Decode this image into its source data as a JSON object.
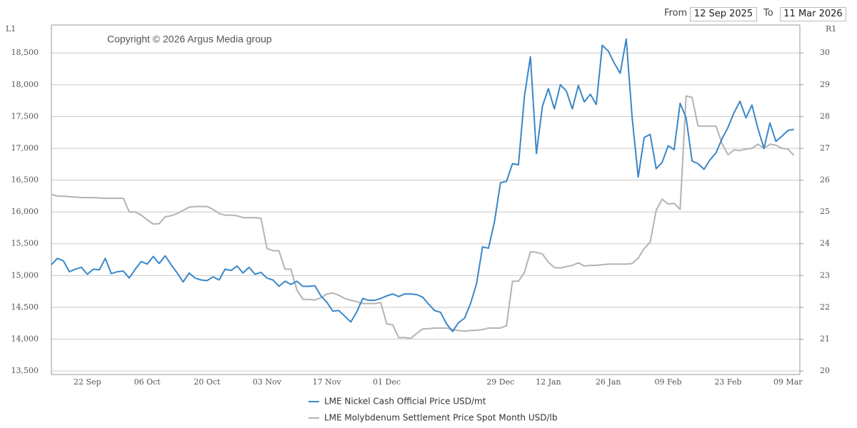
{
  "date_range": {
    "from_label": "From",
    "from": "12 Sep 2025",
    "to_label": "To",
    "to": "11 Mar 2026"
  },
  "chart_data": {
    "type": "line",
    "annotation": "Copyright © 2026 Argus Media group",
    "y_axis_label": "L1",
    "y2_axis_label": "R1",
    "categories": [
      null,
      null,
      null,
      null,
      null,
      null,
      "22 Sep",
      null,
      null,
      null,
      null,
      null,
      null,
      null,
      null,
      null,
      "06 Oct",
      null,
      null,
      null,
      null,
      null,
      null,
      null,
      null,
      null,
      "20 Oct",
      null,
      null,
      null,
      null,
      null,
      null,
      null,
      null,
      null,
      "03 Nov",
      null,
      null,
      null,
      null,
      null,
      null,
      null,
      null,
      null,
      "17 Nov",
      null,
      null,
      null,
      null,
      null,
      null,
      null,
      null,
      null,
      "01 Dec",
      null,
      null,
      null,
      null,
      null,
      null,
      null,
      null,
      null,
      null,
      null,
      null,
      null,
      null,
      null,
      null,
      null,
      null,
      "29 Dec",
      null,
      null,
      null,
      null,
      null,
      null,
      null,
      "12 Jan",
      null,
      null,
      null,
      null,
      null,
      null,
      null,
      null,
      null,
      "26 Jan",
      null,
      null,
      null,
      null,
      null,
      null,
      null,
      null,
      null,
      "09 Feb",
      null,
      null,
      null,
      null,
      null,
      null,
      null,
      null,
      null,
      "23 Feb",
      null,
      null,
      null,
      null,
      null,
      null,
      null,
      null,
      null,
      "09 Mar",
      null
    ],
    "series": [
      {
        "name": "LME Nickel Cash Official Price USD/mt",
        "color": "#3a87c8",
        "values": [
          15170,
          15270,
          15230,
          15060,
          15100,
          15130,
          15020,
          15100,
          15090,
          15270,
          15030,
          15060,
          15070,
          14960,
          15100,
          15220,
          15180,
          15300,
          15190,
          15310,
          15170,
          15040,
          14900,
          15040,
          14960,
          14930,
          14920,
          14980,
          14930,
          15100,
          15080,
          15150,
          15040,
          15130,
          15020,
          15050,
          14960,
          14930,
          14830,
          14910,
          14860,
          14910,
          14830,
          14830,
          14840,
          14680,
          14580,
          14440,
          14450,
          14360,
          14270,
          14430,
          14640,
          14610,
          14610,
          14640,
          14680,
          14710,
          14670,
          14710,
          14710,
          14700,
          14660,
          14550,
          14450,
          14420,
          14240,
          14120,
          14260,
          14330,
          14560,
          14870,
          15450,
          15430,
          15850,
          16460,
          16480,
          16760,
          16740,
          17820,
          18440,
          16920,
          17660,
          17940,
          17620,
          18000,
          17900,
          17620,
          17990,
          17730,
          17850,
          17690,
          18620,
          18530,
          18340,
          18180,
          18720,
          17470,
          16550,
          17170,
          17220,
          16680,
          16780,
          17040,
          16980,
          17710,
          17480,
          16800,
          16760,
          16670,
          16820,
          16930,
          17150,
          17330,
          17560,
          17740,
          17480,
          17680,
          17310,
          17000,
          17400,
          17110,
          17190,
          17280,
          17300
        ]
      },
      {
        "name": "LME Molybdenum Settlement Price Spot Month USD/lb",
        "color": "#b3b3b3",
        "axis": "y2",
        "values": [
          25.55,
          25.5,
          25.5,
          25.48,
          25.47,
          25.45,
          25.45,
          25.45,
          25.44,
          25.43,
          25.43,
          25.43,
          25.43,
          25.0,
          25.0,
          24.9,
          24.75,
          24.62,
          24.63,
          24.85,
          24.88,
          24.95,
          25.05,
          25.15,
          25.17,
          25.17,
          25.17,
          25.08,
          24.95,
          24.9,
          24.9,
          24.88,
          24.82,
          24.82,
          24.82,
          24.8,
          23.85,
          23.78,
          23.78,
          23.2,
          23.2,
          22.55,
          22.25,
          22.25,
          22.23,
          22.3,
          22.42,
          22.45,
          22.38,
          22.28,
          22.22,
          22.18,
          22.12,
          22.12,
          22.12,
          22.15,
          21.48,
          21.45,
          21.05,
          21.05,
          21.02,
          21.18,
          21.32,
          21.33,
          21.35,
          21.35,
          21.35,
          21.3,
          21.27,
          21.25,
          21.27,
          21.28,
          21.3,
          21.35,
          21.35,
          21.35,
          21.42,
          22.82,
          22.82,
          23.1,
          23.75,
          23.73,
          23.68,
          23.42,
          23.25,
          23.24,
          23.28,
          23.32,
          23.4,
          23.3,
          23.32,
          23.32,
          23.34,
          23.36,
          23.36,
          23.36,
          23.36,
          23.38,
          23.55,
          23.85,
          24.05,
          25.05,
          25.4,
          25.25,
          25.27,
          25.08,
          28.65,
          28.6,
          27.7,
          27.7,
          27.7,
          27.7,
          27.15,
          26.8,
          26.95,
          26.93,
          26.98,
          27.0,
          27.13,
          27.0,
          27.13,
          27.1,
          27.0,
          26.98,
          26.78
        ]
      }
    ],
    "ylim": [
      13500,
      18940
    ],
    "yticks": [
      {
        "value": 13500,
        "label": "13,500"
      },
      {
        "value": 14000,
        "label": "14,000"
      },
      {
        "value": 14500,
        "label": "14,500"
      },
      {
        "value": 15000,
        "label": "15,000"
      },
      {
        "value": 15500,
        "label": "15,500"
      },
      {
        "value": 16000,
        "label": "16,000"
      },
      {
        "value": 16500,
        "label": "16,500"
      },
      {
        "value": 17000,
        "label": "17,000"
      },
      {
        "value": 17500,
        "label": "17,500"
      },
      {
        "value": 18000,
        "label": "18,000"
      },
      {
        "value": 18500,
        "label": "18,500"
      }
    ],
    "y2lim": [
      20,
      30.88
    ],
    "y2ticks": [
      20,
      21,
      22,
      23,
      24,
      25,
      26,
      27,
      28,
      29,
      30
    ],
    "grid": true
  }
}
